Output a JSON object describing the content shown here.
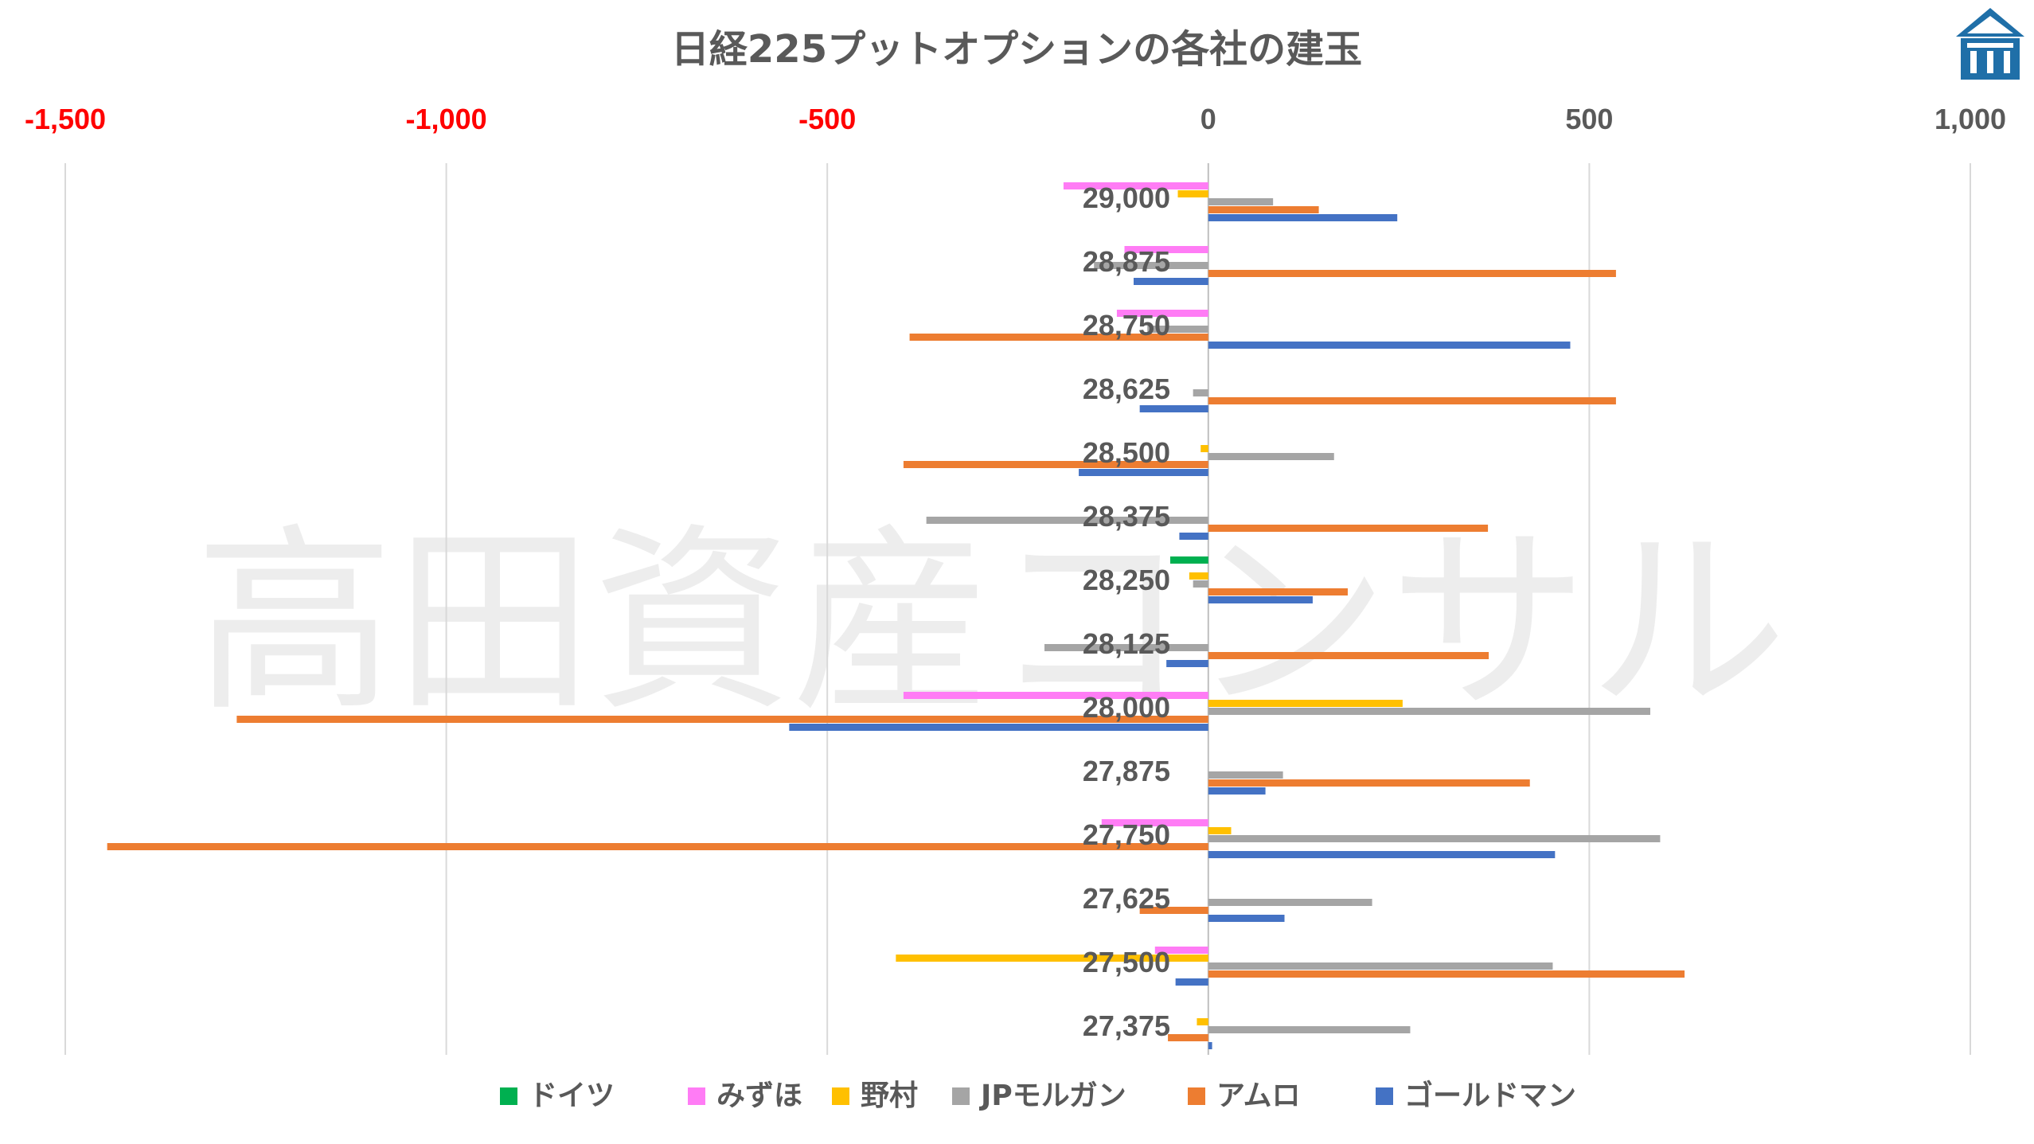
{
  "chart_data": {
    "type": "bar",
    "orientation": "horizontal",
    "title": "日経225プットオプションの各社の建玉",
    "watermark": "高田資産コンサル",
    "xlim": [
      -1500,
      1000
    ],
    "xticks": [
      -1500,
      -1000,
      -500,
      0,
      500,
      1000
    ],
    "xtick_labels": [
      "-1,500",
      "-1,000",
      "-500",
      "0",
      "500",
      "1,000"
    ],
    "negative_tick_color": "#ff0000",
    "positive_tick_color": "#595959",
    "grid": true,
    "legend_position": "bottom",
    "categories": [
      "29,000",
      "28,875",
      "28,750",
      "28,625",
      "28,500",
      "28,375",
      "28,250",
      "28,125",
      "28,000",
      "27,875",
      "27,750",
      "27,625",
      "27,500",
      "27,375"
    ],
    "series": [
      {
        "name": "ドイツ",
        "color": "#00b050",
        "values": [
          0,
          0,
          0,
          0,
          0,
          0,
          -50,
          0,
          0,
          0,
          0,
          0,
          0,
          0
        ]
      },
      {
        "name": "みずほ",
        "color": "#ff7cf5",
        "values": [
          -190,
          -110,
          -120,
          0,
          0,
          0,
          0,
          0,
          -400,
          0,
          -140,
          0,
          -70,
          0
        ]
      },
      {
        "name": "野村",
        "color": "#ffc000",
        "values": [
          -40,
          0,
          0,
          0,
          -10,
          0,
          -25,
          0,
          255,
          0,
          30,
          0,
          -410,
          -15
        ]
      },
      {
        "name": "JPモルガン",
        "color": "#a5a5a5",
        "values": [
          85,
          -150,
          -80,
          -20,
          165,
          -370,
          -20,
          -215,
          580,
          98,
          593,
          215,
          452,
          265
        ]
      },
      {
        "name": "アムロ",
        "color": "#ed7d31",
        "values": [
          145,
          535,
          -392,
          535,
          -400,
          367,
          183,
          368,
          -1275,
          422,
          -1445,
          -90,
          625,
          -53
        ]
      },
      {
        "name": "ゴールドマン",
        "color": "#4472c4",
        "values": [
          248,
          -98,
          475,
          -90,
          -170,
          -38,
          137,
          -55,
          -550,
          75,
          455,
          100,
          -43,
          5
        ]
      }
    ]
  },
  "logo": {
    "icon": "bank-building-icon",
    "color": "#1f6fa8"
  }
}
